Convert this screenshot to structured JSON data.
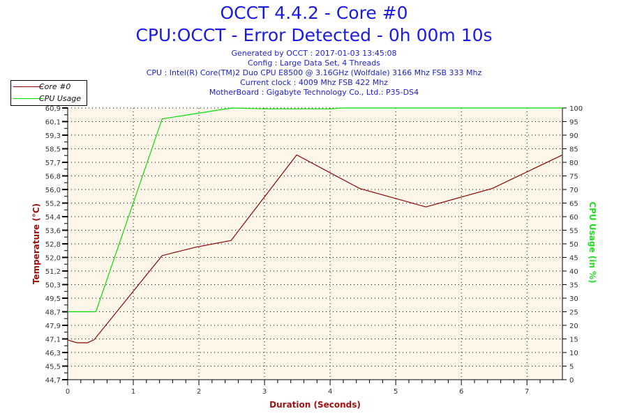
{
  "title": "OCCT 4.4.2 - Core #0",
  "subtitle": "CPU:OCCT - Error Detected - 0h 00m 10s",
  "info": [
    "Generated by OCCT : 2017-01-03 13:45:08",
    "Config : Large Data Set, 4 Threads",
    "CPU : Intel(R) Core(TM)2 Duo CPU E8500 @ 3.16GHz (Wolfdale) 3166 Mhz FSB 333 Mhz",
    "Current clock : 4009 Mhz FSB 422 Mhz",
    "MotherBoard : Gigabyte Technology Co., Ltd.: P35-DS4"
  ],
  "chart_data": {
    "type": "line",
    "xlabel": "Duration (Seconds)",
    "ylabel": "Temperature (°C)",
    "y2label": "CPU Usage (in %)",
    "xlim": [
      0,
      7.54
    ],
    "ylim": [
      44.7,
      60.9
    ],
    "y2lim": [
      0,
      100
    ],
    "xticks": [
      "0",
      "1",
      "2",
      "3",
      "4",
      "5",
      "6",
      "7"
    ],
    "yticks": [
      "44,7",
      "45,5",
      "46,3",
      "47,1",
      "47,9",
      "48,7",
      "49,5",
      "50,3",
      "51,2",
      "52,0",
      "52,8",
      "53,6",
      "54,4",
      "55,2",
      "56,0",
      "56,8",
      "57,7",
      "58,5",
      "59,3",
      "60,1",
      "60,9"
    ],
    "y2ticks": [
      "0",
      "5",
      "10",
      "15",
      "20",
      "25",
      "30",
      "35",
      "40",
      "45",
      "50",
      "55",
      "60",
      "65",
      "70",
      "75",
      "80",
      "85",
      "90",
      "95",
      "100"
    ],
    "grid": true,
    "legend": "top-left",
    "series": [
      {
        "name": "Core #0",
        "axis": "left",
        "color": "#8b0000",
        "points": [
          [
            0,
            47.07
          ],
          [
            0.14,
            46.9
          ],
          [
            0.3,
            46.9
          ],
          [
            0.4,
            47.07
          ],
          [
            1.44,
            52.1
          ],
          [
            1.95,
            52.6
          ],
          [
            2.49,
            53.0
          ],
          [
            3.49,
            58.1
          ],
          [
            4.45,
            56.1
          ],
          [
            5.46,
            55.0
          ],
          [
            6.47,
            56.1
          ],
          [
            7.54,
            58.1
          ]
        ]
      },
      {
        "name": "CPU Usage",
        "axis": "right",
        "color": "#00e000",
        "points": [
          [
            0,
            25
          ],
          [
            0.43,
            25
          ],
          [
            1.44,
            96
          ],
          [
            2.5,
            100
          ],
          [
            3,
            99.7
          ],
          [
            4,
            99.7
          ],
          [
            4.2,
            100
          ],
          [
            7.54,
            100
          ]
        ]
      }
    ]
  }
}
